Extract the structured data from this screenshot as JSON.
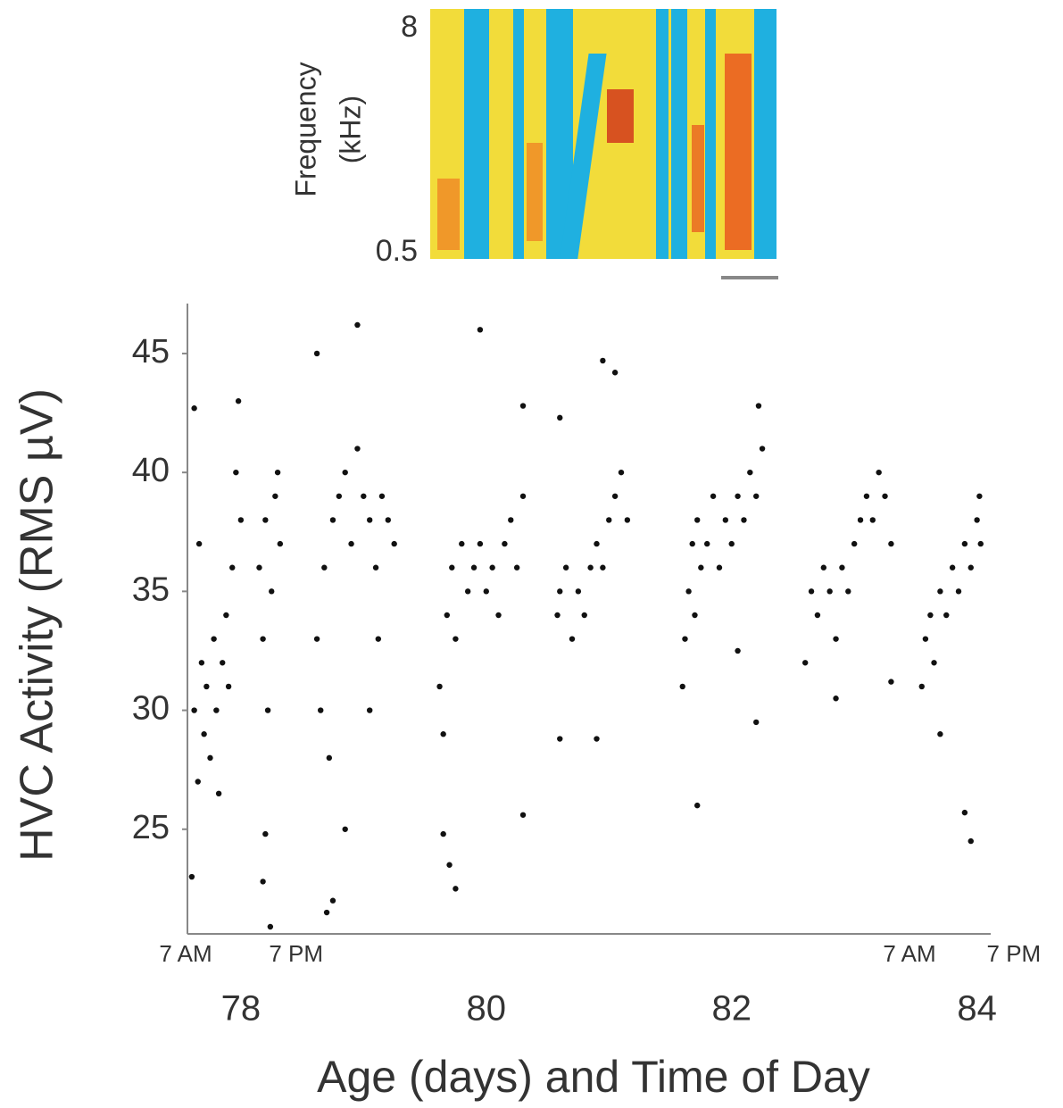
{
  "chart_data": {
    "type": "scatter",
    "ylabel": "HVC Activity (RMS µV)",
    "xlabel": "Age (days) and Time of Day",
    "color": "#111111",
    "xlim": [
      77.55,
      84.25
    ],
    "ylim": [
      20.6,
      47.1
    ],
    "xticks": [
      78,
      80,
      82,
      84
    ],
    "yticks": [
      25,
      30,
      35,
      40,
      45
    ],
    "time_labels": [
      {
        "value": 77.55,
        "label": "7 AM"
      },
      {
        "value": 78.45,
        "label": "7 PM"
      },
      {
        "value": 83.45,
        "label": "7 AM"
      },
      {
        "value": 84.3,
        "label": "7 PM"
      }
    ],
    "x": [
      77.62,
      77.65,
      77.68,
      77.7,
      77.72,
      77.75,
      77.78,
      77.8,
      77.82,
      77.85,
      77.88,
      77.9,
      77.93,
      77.96,
      77.98,
      78.0,
      77.6,
      77.62,
      77.66,
      78.15,
      78.18,
      78.2,
      78.22,
      78.25,
      78.28,
      78.3,
      78.32,
      78.2,
      78.18,
      78.24,
      78.62,
      78.65,
      78.68,
      78.72,
      78.75,
      78.8,
      78.85,
      78.9,
      78.95,
      79.0,
      79.05,
      79.1,
      79.15,
      79.2,
      79.25,
      78.62,
      78.7,
      78.75,
      78.85,
      78.95,
      79.05,
      79.12,
      79.62,
      79.65,
      79.68,
      79.72,
      79.75,
      79.8,
      79.85,
      79.9,
      79.95,
      80.0,
      80.05,
      80.1,
      80.15,
      80.2,
      80.25,
      80.3,
      79.65,
      79.7,
      79.75,
      79.95,
      80.3,
      80.3,
      80.58,
      80.6,
      80.65,
      80.7,
      80.75,
      80.8,
      80.85,
      80.9,
      80.95,
      81.0,
      81.05,
      81.1,
      81.15,
      80.95,
      81.05,
      80.6,
      80.6,
      80.9,
      81.6,
      81.62,
      81.65,
      81.68,
      81.7,
      81.72,
      81.75,
      81.8,
      81.85,
      81.9,
      81.95,
      82.0,
      82.05,
      82.1,
      82.15,
      82.2,
      82.25,
      82.22,
      81.72,
      82.2,
      82.05,
      82.6,
      82.65,
      82.7,
      82.75,
      82.8,
      82.85,
      82.9,
      82.95,
      83.0,
      83.05,
      83.1,
      83.15,
      83.2,
      83.25,
      83.3,
      82.85,
      83.3,
      83.55,
      83.58,
      83.62,
      83.65,
      83.7,
      83.75,
      83.8,
      83.85,
      83.9,
      83.95,
      84.0,
      84.02,
      84.03,
      83.9,
      83.95,
      83.7
    ],
    "values": [
      30,
      27,
      32,
      29,
      31,
      28,
      33,
      30,
      26.5,
      32,
      34,
      31,
      36,
      40,
      43,
      38,
      23,
      42.7,
      37,
      36,
      33,
      38,
      30,
      35,
      39,
      40,
      37,
      24.8,
      22.8,
      20.9,
      33,
      30,
      36,
      28,
      38,
      39,
      40,
      37,
      41,
      39,
      38,
      36,
      39,
      38,
      37,
      45,
      21.5,
      22,
      25,
      46.2,
      30,
      33,
      31,
      29,
      34,
      36,
      33,
      37,
      35,
      36,
      37,
      35,
      36,
      34,
      37,
      38,
      36,
      39,
      24.8,
      23.5,
      22.5,
      46,
      42.8,
      25.6,
      34,
      35,
      36,
      33,
      35,
      34,
      36,
      37,
      36,
      38,
      39,
      40,
      38,
      44.7,
      44.2,
      42.3,
      28.8,
      28.8,
      31,
      33,
      35,
      37,
      34,
      38,
      36,
      37,
      39,
      36,
      38,
      37,
      39,
      38,
      40,
      39,
      41,
      42.8,
      26,
      29.5,
      32.5,
      32,
      35,
      34,
      36,
      35,
      33,
      36,
      35,
      37,
      38,
      39,
      38,
      40,
      39,
      37,
      30.5,
      31.2,
      31,
      33,
      34,
      32,
      35,
      34,
      36,
      35,
      37,
      36,
      38,
      39,
      37,
      25.7,
      24.5,
      29
    ],
    "inset": {
      "ylabel": [
        "Frequency",
        "(kHz)"
      ],
      "ylim": [
        0.5,
        8
      ],
      "yticks": [
        0.5,
        8
      ]
    }
  }
}
